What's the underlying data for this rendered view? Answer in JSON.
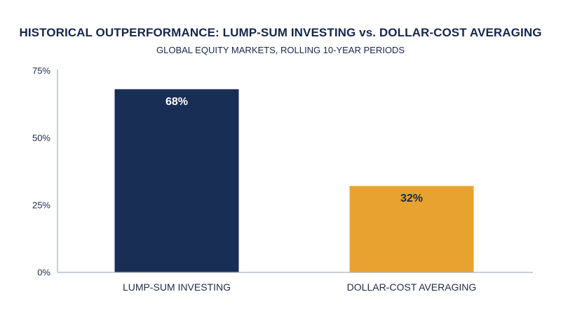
{
  "chart_data": {
    "type": "bar",
    "title": "HISTORICAL OUTPERFORMANCE: LUMP-SUM INVESTING vs. DOLLAR-COST AVERAGING",
    "subtitle": "GLOBAL EQUITY MARKETS, ROLLING 10-YEAR PERIODS",
    "xlabel": "",
    "ylabel": "",
    "categories": [
      "LUMP-SUM INVESTING",
      "DOLLAR-COST AVERAGING"
    ],
    "values": [
      68,
      32
    ],
    "data_labels": [
      "68%",
      "32%"
    ],
    "ylim": [
      0,
      75
    ],
    "yticks": [
      0,
      25,
      50,
      75
    ],
    "ytick_labels": [
      "0%",
      "25%",
      "50%",
      "75%"
    ],
    "grid": false,
    "legend": "none",
    "colors": {
      "bars": [
        "#192e55",
        "#e8a22f"
      ],
      "data_labels": [
        "#ffffff",
        "#1d2a48"
      ],
      "axis": "#aab1bc",
      "text": "#1d2a48"
    }
  }
}
